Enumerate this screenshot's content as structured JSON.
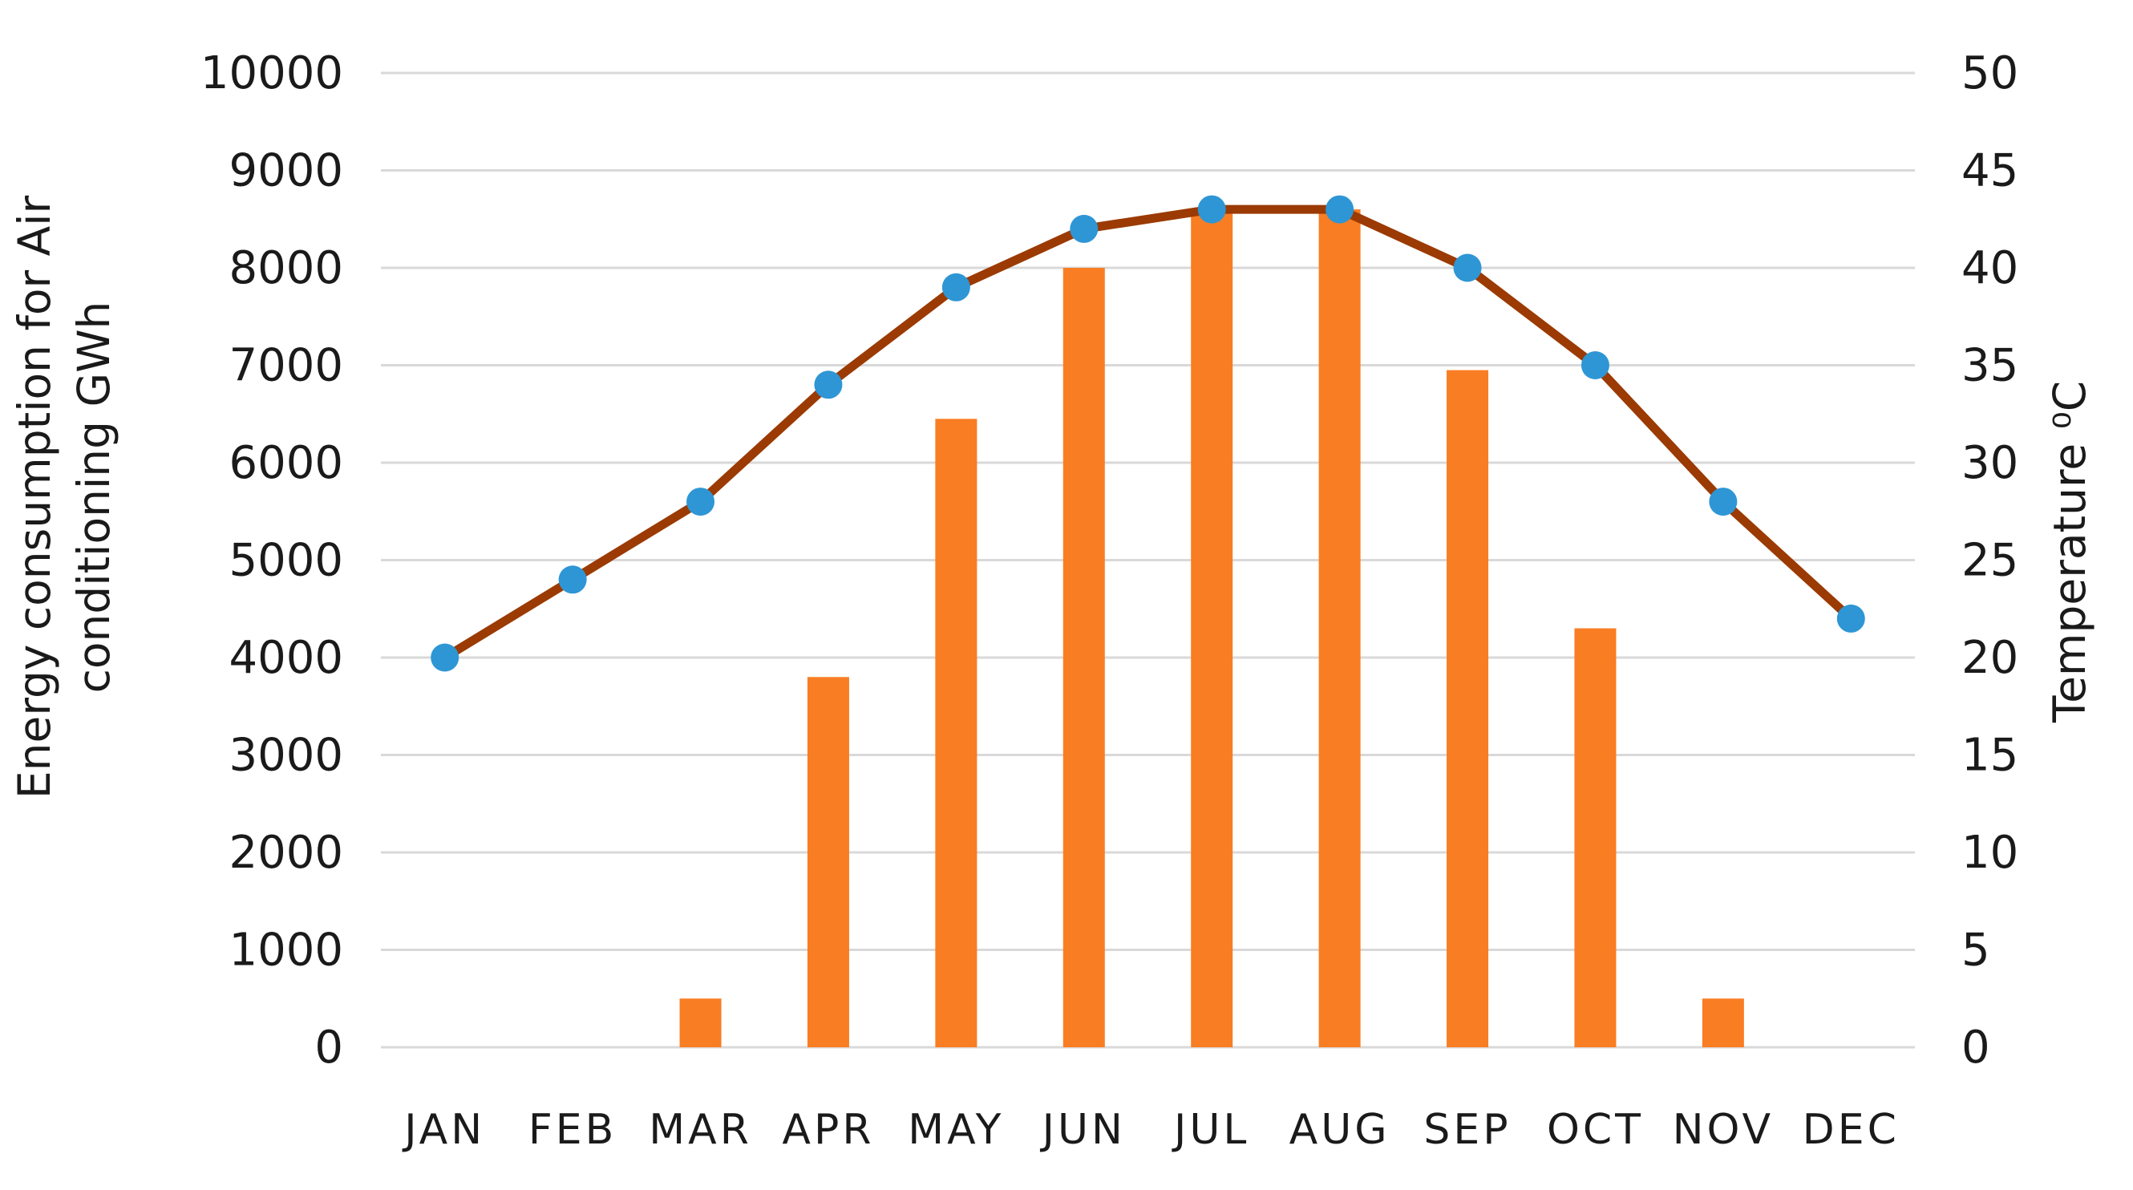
{
  "chart_data": {
    "type": "bar",
    "subtype": "combo-bar-line-dual-axis",
    "categories": [
      "JAN",
      "FEB",
      "MAR",
      "APR",
      "MAY",
      "JUN",
      "JUL",
      "AUG",
      "SEP",
      "OCT",
      "NOV",
      "DEC"
    ],
    "series": [
      {
        "name": "Energy consumption for Air conditioning",
        "type": "bar",
        "axis": "left",
        "unit": "GWh",
        "values": [
          null,
          null,
          500,
          3800,
          6450,
          8000,
          8600,
          8600,
          6950,
          4300,
          500,
          null
        ]
      },
      {
        "name": "Temperature",
        "type": "line",
        "axis": "right",
        "unit": "°C",
        "values": [
          20,
          24,
          28,
          34,
          39,
          42,
          43,
          43,
          40,
          35,
          28,
          22
        ]
      }
    ],
    "left_axis": {
      "title_line1": "Energy consumption for Air",
      "title_line2": "conditioning GWh",
      "min": 0,
      "max": 10000,
      "step": 1000,
      "tick_labels": [
        "0",
        "1000",
        "2000",
        "3000",
        "4000",
        "5000",
        "6000",
        "7000",
        "8000",
        "9000",
        "10000"
      ]
    },
    "right_axis": {
      "title": "Temperature ⁰C",
      "min": 0,
      "max": 50,
      "step": 5,
      "tick_labels": [
        "0",
        "5",
        "10",
        "15",
        "20",
        "25",
        "30",
        "35",
        "40",
        "45",
        "50"
      ]
    },
    "x_axis": {
      "tick_labels": [
        "JAN",
        "FEB",
        "MAR",
        "APR",
        "MAY",
        "JUN",
        "JUL",
        "AUG",
        "SEP",
        "OCT",
        "NOV",
        "DEC"
      ]
    },
    "grid": "horizontal",
    "legend": "none",
    "background": "#FFFFFF"
  },
  "colors": {
    "bar": "#F97D23",
    "line": "#9B3A02",
    "marker": "#2E96D5",
    "gridline": "#D9D9D9",
    "text": "#1A1A1A"
  }
}
